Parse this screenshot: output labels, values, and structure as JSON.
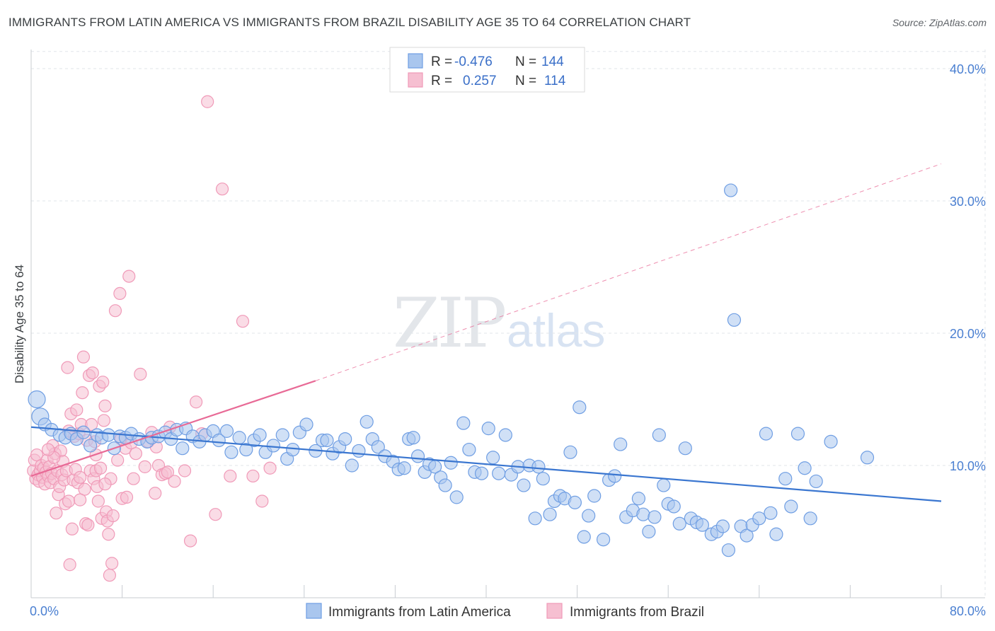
{
  "title": "IMMIGRANTS FROM LATIN AMERICA VS IMMIGRANTS FROM BRAZIL DISABILITY AGE 35 TO 64 CORRELATION CHART",
  "source": "Source: ZipAtlas.com",
  "watermark": {
    "zip": "ZIP",
    "atlas": "atlas"
  },
  "legend": {
    "r_label": "R =",
    "n_label": "N =",
    "rows": [
      {
        "series": "Immigrants from Latin America",
        "r": "-0.476",
        "n": "144",
        "color": "#6f9ee3"
      },
      {
        "series": "Immigrants from Brazil",
        "r": "0.257",
        "n": "114",
        "color": "#f09ab8"
      }
    ]
  },
  "colors": {
    "blue_fill": "#a9c6ee",
    "blue_stroke": "#6f9ee3",
    "blue_line": "#3a76d0",
    "pink_fill": "#f6bfd1",
    "pink_stroke": "#f09ab8",
    "pink_line": "#e86a96"
  },
  "chart_data": {
    "type": "scatter",
    "title": "IMMIGRANTS FROM LATIN AMERICA VS IMMIGRANTS FROM BRAZIL DISABILITY AGE 35 TO 64 CORRELATION CHART",
    "xlabel": "",
    "ylabel": "Disability Age 35 to 64",
    "xlim": [
      0,
      80
    ],
    "ylim": [
      0,
      42
    ],
    "x_tick_labels": [
      {
        "value": 0,
        "label": "0.0%"
      },
      {
        "value": 80,
        "label": "80.0%"
      }
    ],
    "y_ticks": [
      {
        "value": 10,
        "label": "10.0%"
      },
      {
        "value": 20,
        "label": "20.0%"
      },
      {
        "value": 30,
        "label": "30.0%"
      },
      {
        "value": 40,
        "label": "40.0%"
      }
    ],
    "grid": true,
    "legend_position": "top-center",
    "series": [
      {
        "name": "Immigrants from Latin America",
        "r": -0.476,
        "n": 144,
        "trend": {
          "x": [
            0,
            80
          ],
          "y": [
            12.9,
            7.3
          ]
        },
        "points": [
          [
            0.5,
            15.0
          ],
          [
            0.8,
            13.7
          ],
          [
            1.2,
            13.1
          ],
          [
            1.8,
            12.7
          ],
          [
            2.5,
            12.3
          ],
          [
            3.0,
            12.1
          ],
          [
            3.5,
            12.4
          ],
          [
            4.0,
            12.0
          ],
          [
            4.6,
            12.5
          ],
          [
            5.2,
            11.5
          ],
          [
            5.8,
            12.3
          ],
          [
            6.2,
            12.1
          ],
          [
            6.8,
            12.3
          ],
          [
            7.3,
            11.3
          ],
          [
            7.8,
            12.2
          ],
          [
            8.3,
            12.1
          ],
          [
            8.8,
            12.4
          ],
          [
            9.5,
            12.0
          ],
          [
            10.2,
            11.8
          ],
          [
            10.6,
            12.1
          ],
          [
            11.2,
            12.2
          ],
          [
            11.8,
            12.5
          ],
          [
            12.3,
            12.0
          ],
          [
            12.8,
            12.7
          ],
          [
            13.3,
            11.3
          ],
          [
            13.6,
            12.8
          ],
          [
            14.2,
            12.2
          ],
          [
            14.8,
            11.8
          ],
          [
            15.3,
            12.3
          ],
          [
            16.0,
            12.6
          ],
          [
            16.5,
            11.9
          ],
          [
            17.2,
            12.6
          ],
          [
            17.6,
            11.0
          ],
          [
            18.3,
            12.1
          ],
          [
            18.9,
            11.2
          ],
          [
            19.6,
            11.9
          ],
          [
            20.1,
            12.3
          ],
          [
            20.6,
            11.0
          ],
          [
            21.3,
            11.5
          ],
          [
            22.1,
            12.3
          ],
          [
            22.5,
            10.5
          ],
          [
            23.0,
            11.2
          ],
          [
            23.6,
            12.5
          ],
          [
            24.2,
            13.1
          ],
          [
            25.0,
            11.1
          ],
          [
            25.6,
            11.9
          ],
          [
            26.0,
            11.9
          ],
          [
            26.5,
            10.9
          ],
          [
            27.1,
            11.4
          ],
          [
            27.6,
            12.0
          ],
          [
            28.2,
            10.0
          ],
          [
            28.8,
            11.1
          ],
          [
            29.5,
            13.3
          ],
          [
            30.0,
            12.0
          ],
          [
            30.5,
            11.4
          ],
          [
            31.1,
            10.7
          ],
          [
            31.8,
            10.3
          ],
          [
            32.3,
            9.7
          ],
          [
            32.8,
            9.8
          ],
          [
            33.2,
            12.0
          ],
          [
            33.6,
            12.1
          ],
          [
            34.0,
            10.7
          ],
          [
            34.6,
            9.5
          ],
          [
            35.0,
            10.1
          ],
          [
            35.5,
            9.9
          ],
          [
            36.0,
            9.1
          ],
          [
            36.4,
            8.5
          ],
          [
            36.9,
            10.2
          ],
          [
            37.4,
            7.6
          ],
          [
            38.0,
            13.2
          ],
          [
            38.5,
            11.2
          ],
          [
            39.0,
            9.5
          ],
          [
            39.6,
            9.4
          ],
          [
            40.2,
            12.8
          ],
          [
            40.6,
            10.6
          ],
          [
            41.1,
            9.4
          ],
          [
            41.7,
            12.3
          ],
          [
            42.2,
            9.3
          ],
          [
            42.8,
            9.9
          ],
          [
            43.3,
            8.5
          ],
          [
            43.8,
            10.0
          ],
          [
            44.3,
            6.0
          ],
          [
            44.6,
            9.9
          ],
          [
            45.0,
            9.0
          ],
          [
            45.6,
            6.3
          ],
          [
            46.0,
            7.3
          ],
          [
            46.5,
            7.7
          ],
          [
            46.9,
            7.5
          ],
          [
            47.4,
            11.0
          ],
          [
            47.8,
            7.2
          ],
          [
            48.2,
            14.4
          ],
          [
            48.6,
            4.6
          ],
          [
            49.0,
            6.2
          ],
          [
            49.5,
            7.7
          ],
          [
            50.3,
            4.4
          ],
          [
            50.8,
            8.9
          ],
          [
            51.3,
            9.2
          ],
          [
            51.8,
            11.6
          ],
          [
            52.3,
            6.1
          ],
          [
            52.9,
            6.6
          ],
          [
            53.4,
            7.5
          ],
          [
            53.8,
            6.3
          ],
          [
            54.3,
            5.0
          ],
          [
            54.8,
            6.1
          ],
          [
            55.2,
            12.3
          ],
          [
            55.6,
            8.5
          ],
          [
            56.0,
            7.1
          ],
          [
            56.5,
            6.9
          ],
          [
            57.0,
            5.6
          ],
          [
            57.5,
            11.3
          ],
          [
            58.0,
            6.0
          ],
          [
            58.5,
            5.7
          ],
          [
            59.0,
            5.5
          ],
          [
            59.8,
            4.8
          ],
          [
            60.3,
            5.0
          ],
          [
            60.8,
            5.4
          ],
          [
            61.3,
            3.6
          ],
          [
            61.8,
            21.0
          ],
          [
            61.5,
            30.8
          ],
          [
            62.4,
            5.4
          ],
          [
            62.9,
            4.7
          ],
          [
            63.4,
            5.5
          ],
          [
            64.0,
            6.0
          ],
          [
            64.6,
            12.4
          ],
          [
            65.0,
            6.4
          ],
          [
            65.5,
            4.8
          ],
          [
            66.3,
            9.0
          ],
          [
            66.8,
            6.9
          ],
          [
            67.4,
            12.4
          ],
          [
            68.0,
            9.8
          ],
          [
            68.5,
            6.0
          ],
          [
            69.0,
            8.8
          ],
          [
            70.3,
            11.8
          ],
          [
            73.5,
            10.6
          ]
        ]
      },
      {
        "name": "Immigrants from Brazil",
        "r": 0.257,
        "n": 114,
        "trend": {
          "x": [
            0,
            25
          ],
          "y": [
            9.2,
            16.4
          ]
        },
        "trend_extended": {
          "x": [
            25,
            80
          ],
          "y": [
            16.4,
            32.8
          ]
        },
        "points": [
          [
            0.2,
            9.6
          ],
          [
            0.3,
            10.4
          ],
          [
            0.4,
            9.0
          ],
          [
            0.5,
            10.8
          ],
          [
            0.6,
            9.3
          ],
          [
            0.7,
            8.8
          ],
          [
            0.8,
            9.6
          ],
          [
            0.9,
            10.0
          ],
          [
            1.0,
            9.1
          ],
          [
            1.1,
            9.8
          ],
          [
            1.2,
            8.6
          ],
          [
            1.3,
            9.5
          ],
          [
            1.4,
            10.4
          ],
          [
            1.5,
            9.2
          ],
          [
            1.6,
            9.9
          ],
          [
            1.7,
            8.7
          ],
          [
            1.8,
            9.4
          ],
          [
            1.9,
            11.5
          ],
          [
            2.0,
            9.0
          ],
          [
            2.1,
            10.9
          ],
          [
            2.2,
            6.4
          ],
          [
            2.3,
            9.6
          ],
          [
            2.4,
            7.8
          ],
          [
            2.5,
            8.4
          ],
          [
            2.6,
            11.1
          ],
          [
            2.7,
            9.3
          ],
          [
            2.8,
            10.3
          ],
          [
            2.9,
            8.9
          ],
          [
            3.0,
            7.1
          ],
          [
            3.1,
            9.6
          ],
          [
            3.2,
            17.4
          ],
          [
            3.3,
            7.3
          ],
          [
            3.4,
            2.5
          ],
          [
            3.5,
            13.9
          ],
          [
            3.6,
            5.2
          ],
          [
            3.7,
            8.9
          ],
          [
            3.8,
            12.2
          ],
          [
            3.9,
            9.7
          ],
          [
            4.0,
            14.2
          ],
          [
            4.1,
            8.7
          ],
          [
            4.2,
            12.4
          ],
          [
            4.3,
            9.1
          ],
          [
            4.4,
            13.1
          ],
          [
            4.5,
            15.5
          ],
          [
            4.6,
            18.2
          ],
          [
            4.7,
            8.2
          ],
          [
            4.8,
            5.6
          ],
          [
            4.9,
            11.9
          ],
          [
            5.0,
            5.5
          ],
          [
            5.1,
            16.8
          ],
          [
            5.2,
            9.6
          ],
          [
            5.3,
            13.1
          ],
          [
            5.4,
            17.0
          ],
          [
            5.5,
            9.0
          ],
          [
            5.6,
            11.8
          ],
          [
            5.7,
            9.6
          ],
          [
            5.8,
            8.4
          ],
          [
            5.9,
            7.3
          ],
          [
            6.0,
            16.0
          ],
          [
            6.1,
            9.8
          ],
          [
            6.2,
            6.0
          ],
          [
            6.3,
            16.3
          ],
          [
            6.4,
            13.4
          ],
          [
            6.5,
            14.5
          ],
          [
            6.6,
            6.5
          ],
          [
            6.7,
            5.8
          ],
          [
            6.8,
            4.8
          ],
          [
            6.9,
            1.7
          ],
          [
            7.0,
            9.0
          ],
          [
            7.1,
            2.6
          ],
          [
            7.2,
            6.2
          ],
          [
            7.4,
            21.7
          ],
          [
            7.6,
            10.4
          ],
          [
            7.8,
            23.0
          ],
          [
            7.9,
            12.0
          ],
          [
            8.0,
            7.5
          ],
          [
            8.3,
            11.3
          ],
          [
            8.6,
            24.3
          ],
          [
            8.8,
            11.7
          ],
          [
            9.2,
            10.9
          ],
          [
            9.6,
            16.9
          ],
          [
            10.0,
            9.9
          ],
          [
            10.3,
            11.8
          ],
          [
            10.6,
            12.5
          ],
          [
            10.9,
            7.9
          ],
          [
            11.2,
            10.0
          ],
          [
            11.5,
            9.3
          ],
          [
            11.8,
            9.4
          ],
          [
            12.2,
            12.9
          ],
          [
            12.6,
            8.8
          ],
          [
            13.5,
            9.6
          ],
          [
            14.0,
            4.3
          ],
          [
            14.5,
            14.8
          ],
          [
            15.0,
            12.4
          ],
          [
            15.5,
            37.5
          ],
          [
            16.2,
            6.3
          ],
          [
            16.8,
            30.9
          ],
          [
            17.5,
            9.2
          ],
          [
            18.6,
            20.9
          ],
          [
            19.5,
            9.2
          ],
          [
            20.3,
            7.3
          ],
          [
            21.0,
            9.8
          ],
          [
            3.3,
            12.6
          ],
          [
            2.0,
            10.6
          ],
          [
            1.5,
            11.2
          ],
          [
            6.5,
            8.6
          ],
          [
            5.7,
            10.8
          ],
          [
            8.4,
            7.6
          ],
          [
            9.0,
            9.0
          ],
          [
            11.0,
            11.4
          ],
          [
            12.0,
            9.5
          ],
          [
            4.3,
            7.4
          ]
        ]
      }
    ]
  }
}
